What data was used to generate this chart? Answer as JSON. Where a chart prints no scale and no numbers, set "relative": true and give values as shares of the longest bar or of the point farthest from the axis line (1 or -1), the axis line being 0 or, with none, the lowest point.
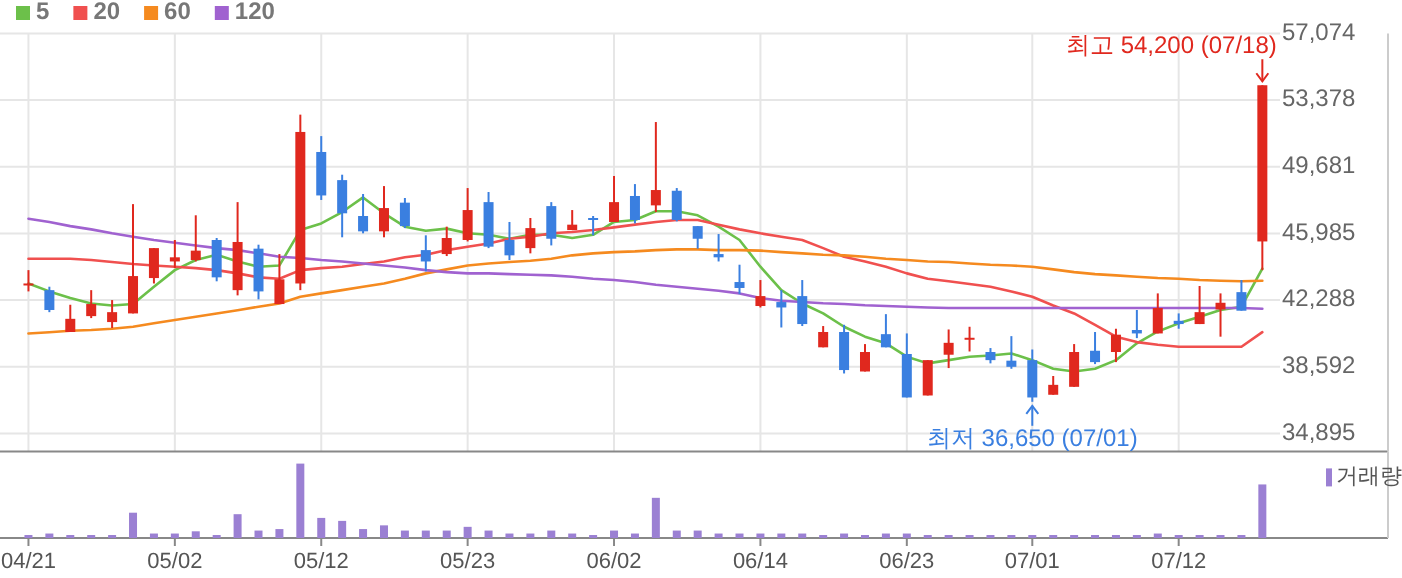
{
  "chart_data": [
    {
      "type": "candlestick",
      "categories": [
        "04/21",
        null,
        null,
        null,
        null,
        null,
        null,
        "05/02",
        null,
        null,
        null,
        null,
        null,
        null,
        "05/12",
        null,
        null,
        null,
        null,
        null,
        null,
        "05/23",
        null,
        null,
        null,
        null,
        null,
        null,
        "06/02",
        null,
        null,
        null,
        null,
        null,
        null,
        "06/14",
        null,
        null,
        null,
        null,
        null,
        null,
        "06/23",
        null,
        null,
        null,
        null,
        null,
        "07/01",
        null,
        null,
        null,
        null,
        null,
        null,
        "07/12",
        null,
        null,
        null,
        null
      ],
      "ohlc": [
        [
          43210,
          43950,
          42770,
          43210
        ],
        [
          42840,
          43030,
          41620,
          41740
        ],
        [
          40520,
          42030,
          40520,
          41250
        ],
        [
          41400,
          42840,
          41290,
          42070
        ],
        [
          41070,
          42290,
          40740,
          41620
        ],
        [
          41550,
          47610,
          41550,
          43620
        ],
        [
          43510,
          45170,
          43210,
          45170
        ],
        [
          44430,
          45620,
          44060,
          44660
        ],
        [
          44510,
          46990,
          44430,
          45030
        ],
        [
          45620,
          45730,
          43330,
          43550
        ],
        [
          42840,
          47720,
          42550,
          45510
        ],
        [
          45140,
          45360,
          42330,
          42770
        ],
        [
          42070,
          44840,
          42070,
          43440
        ],
        [
          43210,
          52570,
          42840,
          51610
        ],
        [
          50500,
          51380,
          47840,
          48090
        ],
        [
          48940,
          49240,
          45770,
          47100
        ],
        [
          46950,
          48170,
          45990,
          46100
        ],
        [
          46100,
          48610,
          45770,
          47390
        ],
        [
          47690,
          47950,
          46280,
          46390
        ],
        [
          45060,
          45880,
          43880,
          44430
        ],
        [
          44840,
          46360,
          44730,
          45730
        ],
        [
          45620,
          48500,
          45540,
          47280
        ],
        [
          47720,
          48280,
          45170,
          45250
        ],
        [
          45620,
          46620,
          44510,
          44770
        ],
        [
          45170,
          46840,
          44880,
          46280
        ],
        [
          47500,
          47720,
          45320,
          45690
        ],
        [
          46170,
          47280,
          46170,
          46470
        ],
        [
          46840,
          46950,
          45880,
          46840
        ],
        [
          46620,
          49170,
          46620,
          47720
        ],
        [
          48060,
          48720,
          46540,
          46730
        ],
        [
          47540,
          52160,
          47170,
          48390
        ],
        [
          48350,
          48500,
          46650,
          46730
        ],
        [
          46390,
          46390,
          45140,
          45690
        ],
        [
          44840,
          45950,
          44430,
          44660
        ],
        [
          43290,
          44250,
          42620,
          42960
        ],
        [
          41960,
          43400,
          41880,
          42510
        ],
        [
          42180,
          42840,
          40770,
          41880
        ],
        [
          42510,
          43400,
          40850,
          40960
        ],
        [
          39670,
          40850,
          39670,
          40520
        ],
        [
          40520,
          40920,
          38220,
          38410
        ],
        [
          38330,
          39850,
          38330,
          39410
        ],
        [
          40400,
          41510,
          39670,
          39670
        ],
        [
          39300,
          40440,
          36890,
          36890
        ],
        [
          37000,
          38960,
          37000,
          38960
        ],
        [
          39260,
          40660,
          38520,
          39920
        ],
        [
          40150,
          40810,
          39440,
          40200
        ],
        [
          39410,
          39630,
          38780,
          38960
        ],
        [
          38930,
          40290,
          38480,
          38590
        ],
        [
          38960,
          39550,
          36650,
          36890
        ],
        [
          37040,
          38080,
          37040,
          37590
        ],
        [
          37480,
          39850,
          37480,
          39410
        ],
        [
          39480,
          40520,
          38740,
          38850
        ],
        [
          39410,
          40700,
          38850,
          40370
        ],
        [
          40630,
          41740,
          40180,
          40440
        ],
        [
          40440,
          42660,
          40440,
          41850
        ],
        [
          41140,
          41550,
          40700,
          40960
        ],
        [
          40960,
          43070,
          40960,
          41620
        ],
        [
          41770,
          42660,
          40260,
          42140
        ],
        [
          42730,
          43400,
          41700,
          41700
        ],
        [
          45540,
          54200,
          43950,
          54200
        ]
      ],
      "colors": [
        "#e0281e",
        "#3a7fe0",
        "#e0281e",
        "#e0281e",
        "#e0281e",
        "#e0281e",
        "#e0281e",
        "#e0281e",
        "#e0281e",
        "#3a7fe0",
        "#e0281e",
        "#3a7fe0",
        "#e0281e",
        "#e0281e",
        "#3a7fe0",
        "#3a7fe0",
        "#3a7fe0",
        "#e0281e",
        "#3a7fe0",
        "#3a7fe0",
        "#e0281e",
        "#e0281e",
        "#3a7fe0",
        "#3a7fe0",
        "#e0281e",
        "#3a7fe0",
        "#e0281e",
        "#3a7fe0",
        "#e0281e",
        "#3a7fe0",
        "#e0281e",
        "#3a7fe0",
        "#3a7fe0",
        "#3a7fe0",
        "#3a7fe0",
        "#e0281e",
        "#3a7fe0",
        "#3a7fe0",
        "#e0281e",
        "#3a7fe0",
        "#e0281e",
        "#3a7fe0",
        "#3a7fe0",
        "#e0281e",
        "#e0281e",
        "#e0281e",
        "#3a7fe0",
        "#3a7fe0",
        "#3a7fe0",
        "#e0281e",
        "#e0281e",
        "#3a7fe0",
        "#e0281e",
        "#3a7fe0",
        "#e0281e",
        "#3a7fe0",
        "#e0281e",
        "#e0281e",
        "#3a7fe0",
        "#e0281e"
      ],
      "series": [
        {
          "name": "5",
          "type": "line",
          "color": "#6cc04a",
          "values": [
            43210,
            42770,
            42400,
            42100,
            41990,
            42070,
            43030,
            43950,
            44510,
            44800,
            44430,
            44140,
            44210,
            46170,
            46540,
            47170,
            47980,
            47100,
            46360,
            46130,
            46250,
            45990,
            45910,
            45690,
            45910,
            45910,
            45730,
            45910,
            46620,
            46730,
            47210,
            47210,
            46990,
            46360,
            45620,
            44140,
            42840,
            42100,
            41550,
            40810,
            40260,
            39890,
            39150,
            38780,
            38960,
            39150,
            39220,
            39330,
            38960,
            38480,
            38330,
            38480,
            38960,
            39890,
            40550,
            41000,
            41370,
            41740,
            41920,
            44030
          ]
        },
        {
          "name": "20",
          "type": "line",
          "color": "#f0504f",
          "values": [
            44580,
            44580,
            44580,
            44510,
            44400,
            44290,
            44210,
            44140,
            44060,
            43950,
            43770,
            43550,
            43470,
            43950,
            44060,
            44140,
            44290,
            44430,
            44660,
            44800,
            45060,
            45250,
            45430,
            45690,
            45800,
            45990,
            46060,
            46170,
            46320,
            46470,
            46620,
            46730,
            46730,
            46470,
            46210,
            45990,
            45800,
            45620,
            45170,
            44690,
            44430,
            44140,
            43770,
            43470,
            43330,
            43180,
            43030,
            42770,
            42470,
            41990,
            41550,
            40920,
            40260,
            39960,
            39810,
            39700,
            39700,
            39700,
            39700,
            40510
          ]
        },
        {
          "name": "60",
          "type": "line",
          "color": "#f58a1f",
          "values": [
            40440,
            40510,
            40590,
            40630,
            40700,
            40810,
            41000,
            41180,
            41370,
            41550,
            41730,
            41920,
            42100,
            42470,
            42660,
            42840,
            43030,
            43210,
            43470,
            43770,
            43990,
            44210,
            44320,
            44400,
            44470,
            44580,
            44770,
            44880,
            44950,
            44990,
            45060,
            45100,
            45100,
            45060,
            45060,
            45030,
            44950,
            44880,
            44800,
            44770,
            44690,
            44580,
            44510,
            44430,
            44400,
            44320,
            44250,
            44210,
            44140,
            43990,
            43840,
            43730,
            43660,
            43580,
            43510,
            43470,
            43400,
            43360,
            43330,
            43360
          ]
        },
        {
          "name": "120",
          "type": "line",
          "color": "#a062d0",
          "values": [
            46800,
            46620,
            46390,
            46210,
            45990,
            45800,
            45620,
            45470,
            45320,
            45170,
            45060,
            44880,
            44690,
            44620,
            44510,
            44430,
            44320,
            44210,
            44100,
            43950,
            43840,
            43770,
            43770,
            43730,
            43690,
            43660,
            43580,
            43470,
            43400,
            43290,
            43140,
            43030,
            42920,
            42810,
            42660,
            42400,
            42250,
            42180,
            42110,
            42070,
            42000,
            41960,
            41920,
            41880,
            41850,
            41850,
            41850,
            41850,
            41850,
            41850,
            41850,
            41850,
            41850,
            41850,
            41850,
            41850,
            41850,
            41850,
            41850,
            41810
          ]
        }
      ],
      "ylim": [
        33900,
        57074
      ],
      "yticks": [
        {
          "value": 34895,
          "label": "34,895"
        },
        {
          "value": 38592,
          "label": "38,592"
        },
        {
          "value": 42288,
          "label": "42,288"
        },
        {
          "value": 45985,
          "label": "45,985"
        },
        {
          "value": 49681,
          "label": "49,681"
        },
        {
          "value": 53378,
          "label": "53,378"
        },
        {
          "value": 57074,
          "label": "57,074"
        }
      ],
      "grid": true,
      "legend": "top left",
      "tick_labels": "y",
      "annotations": [
        "최고 54,200 (07/18)",
        {
          "text": "최저 36,650 (07/01)",
          "x": "07/01",
          "y": 36650
        }
      ]
    },
    {
      "type": "bar",
      "categories": [
        "04/21",
        null,
        null,
        null,
        null,
        null,
        null,
        "05/02",
        null,
        null,
        null,
        null,
        null,
        null,
        "05/12",
        null,
        null,
        null,
        null,
        null,
        null,
        "05/23",
        null,
        null,
        null,
        null,
        null,
        null,
        "06/02",
        null,
        null,
        null,
        null,
        null,
        null,
        "06/14",
        null,
        null,
        null,
        null,
        null,
        null,
        "06/23",
        null,
        null,
        null,
        null,
        null,
        "07/01",
        null,
        null,
        null,
        null,
        null,
        null,
        "07/12",
        null,
        null,
        null,
        null
      ],
      "series": [
        {
          "name": "거래량",
          "color": "#9b80d3",
          "values": [
            0.04,
            0.06,
            0.04,
            0.04,
            0.04,
            0.34,
            0.06,
            0.06,
            0.09,
            0.04,
            0.32,
            0.1,
            0.12,
            1,
            0.27,
            0.23,
            0.12,
            0.17,
            0.1,
            0.1,
            0.1,
            0.15,
            0.1,
            0.06,
            0.06,
            0.1,
            0.06,
            0.04,
            0.1,
            0.06,
            0.54,
            0.1,
            0.1,
            0.06,
            0.06,
            0.06,
            0.06,
            0.06,
            0.04,
            0.06,
            0.04,
            0.06,
            0.06,
            0.04,
            0.04,
            0.04,
            0.04,
            0.04,
            0.04,
            0.04,
            0.04,
            0.04,
            0.04,
            0.04,
            0.06,
            0.04,
            0.04,
            0.04,
            0.04,
            0.72
          ]
        }
      ],
      "relative": true,
      "legend": "top right",
      "tick_labels": "x"
    }
  ]
}
